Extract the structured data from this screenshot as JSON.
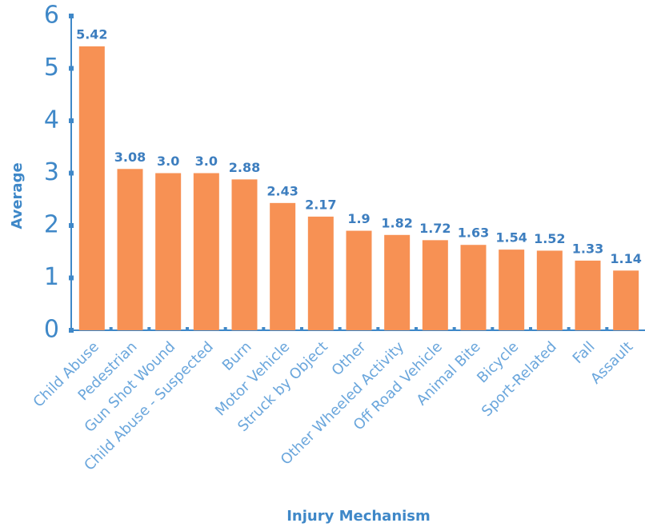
{
  "chart_data": {
    "type": "bar",
    "x_label": "Injury Mechanism",
    "y_label": "Average",
    "categories": [
      "Child Abuse",
      "Pedestrian",
      "Gun Shot Wound",
      "Child Abuse - Suspected",
      "Burn",
      "Motor Vehicle",
      "Struck by Object",
      "Other",
      "Other Wheeled Activity",
      "Off Road Vehicle",
      "Animal Bite",
      "Bicycle",
      "Sport-Related",
      "Fall",
      "Assault"
    ],
    "values": [
      5.42,
      3.08,
      3.0,
      3.0,
      2.88,
      2.43,
      2.17,
      1.9,
      1.82,
      1.72,
      1.63,
      1.54,
      1.52,
      1.33,
      1.14
    ],
    "value_labels": [
      "5.42",
      "3.08",
      "3.0",
      "3.0",
      "2.88",
      "2.43",
      "2.17",
      "1.9",
      "1.82",
      "1.72",
      "1.63",
      "1.54",
      "1.52",
      "1.33",
      "1.14"
    ],
    "color": "#f79154",
    "ylim": [
      0,
      6
    ],
    "yticks": [
      0,
      1,
      2,
      3,
      4,
      5,
      6
    ],
    "grid": false
  }
}
